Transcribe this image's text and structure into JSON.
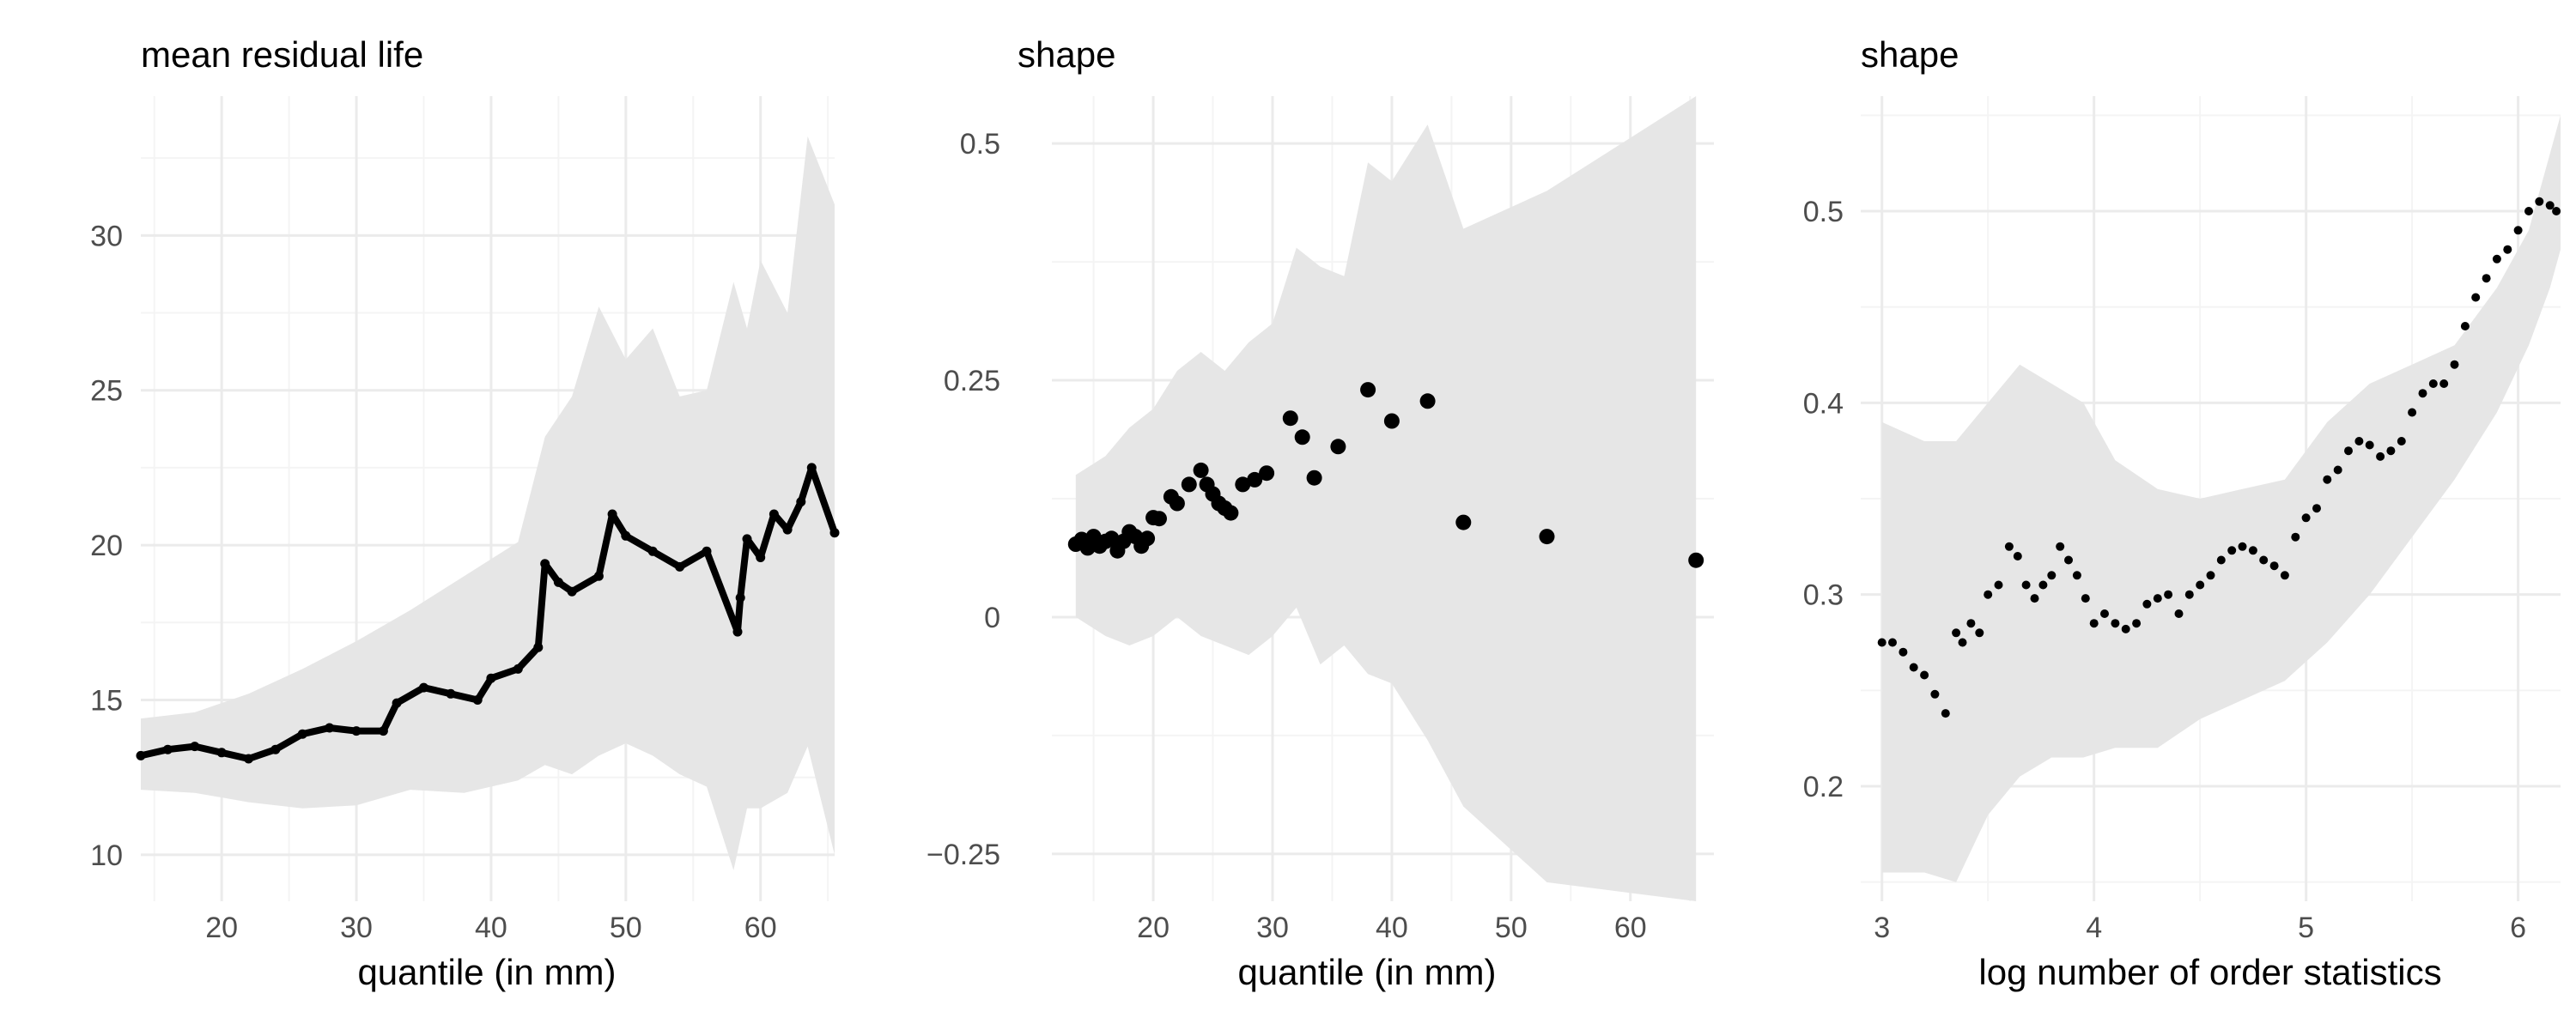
{
  "figure": {
    "panels": 3
  },
  "colors": {
    "background": "#ffffff",
    "grid_major": "#ebebeb",
    "grid_minor": "#f4f4f4",
    "ribbon": "#e6e6e6",
    "points": "#000000",
    "tick_text": "#4d4d4d",
    "title_text": "#000000"
  },
  "chart_data": [
    {
      "type": "line",
      "title": "mean residual life",
      "xlabel": "quantile (in mm)",
      "ylabel": "",
      "xlim": [
        14,
        65.5
      ],
      "ylim": [
        8.5,
        34.5
      ],
      "xticks": [
        20,
        30,
        40,
        50,
        60
      ],
      "yticks": [
        10,
        15,
        20,
        25,
        30
      ],
      "grid": true,
      "series": [
        {
          "kind": "line-points",
          "x": [
            14,
            16,
            18,
            20,
            22,
            24,
            26,
            28,
            30,
            32,
            33,
            35,
            37,
            39,
            40,
            42,
            43.5,
            44,
            45,
            46,
            48,
            49,
            50,
            52,
            54,
            56,
            58.3,
            58.5,
            59,
            60,
            61,
            62,
            63,
            63.8,
            65.5
          ],
          "y": [
            13.2,
            13.4,
            13.5,
            13.3,
            13.1,
            13.4,
            13.9,
            14.1,
            14.0,
            14.0,
            14.9,
            15.4,
            15.2,
            15.0,
            15.7,
            16.0,
            16.7,
            19.4,
            18.8,
            18.5,
            19.0,
            21.0,
            20.3,
            19.8,
            19.3,
            19.8,
            17.2,
            18.3,
            20.2,
            19.6,
            21.0,
            20.5,
            21.4,
            22.5,
            20.4
          ]
        }
      ],
      "band": {
        "x": [
          14,
          18,
          22,
          26,
          30,
          34,
          38,
          42,
          44,
          46,
          48,
          50,
          52,
          54,
          56,
          58,
          59,
          60,
          62,
          63.5,
          65.5
        ],
        "lower": [
          12.1,
          12.0,
          11.7,
          11.5,
          11.6,
          12.1,
          12.0,
          12.4,
          12.9,
          12.6,
          13.2,
          13.6,
          13.2,
          12.6,
          12.2,
          9.5,
          11.5,
          11.5,
          12.0,
          13.5,
          10.0
        ],
        "upper": [
          14.4,
          14.6,
          15.2,
          16.0,
          16.9,
          17.9,
          19.0,
          20.1,
          23.5,
          24.8,
          27.7,
          26.0,
          27.0,
          24.8,
          25.0,
          28.5,
          27.0,
          29.2,
          27.5,
          33.2,
          31.0
        ]
      }
    },
    {
      "type": "scatter",
      "title": "shape",
      "xlabel": "quantile (in mm)",
      "ylabel": "",
      "xlim": [
        11.5,
        67
      ],
      "ylim": [
        -0.3,
        0.55
      ],
      "xticks": [
        20,
        30,
        40,
        50,
        60
      ],
      "yticks": [
        -0.25,
        0,
        0.25,
        0.5
      ],
      "ytick_labels": [
        "−0.25",
        "0",
        "0.25",
        "0.5"
      ],
      "grid": true,
      "series": [
        {
          "kind": "points",
          "x": [
            13.5,
            14.0,
            14.5,
            15.0,
            15.5,
            16.0,
            16.5,
            17.0,
            17.5,
            18.0,
            18.5,
            19.0,
            19.5,
            20.0,
            20.5,
            21.5,
            22.0,
            23.0,
            24.0,
            24.5,
            25.0,
            25.5,
            26.0,
            26.5,
            27.5,
            28.5,
            29.5,
            31.5,
            32.5,
            33.5,
            35.5,
            38.0,
            40.0,
            43.0,
            46.0,
            53.0,
            65.5
          ],
          "y": [
            0.077,
            0.082,
            0.073,
            0.085,
            0.075,
            0.08,
            0.083,
            0.07,
            0.08,
            0.09,
            0.085,
            0.075,
            0.083,
            0.105,
            0.104,
            0.127,
            0.12,
            0.14,
            0.155,
            0.14,
            0.13,
            0.12,
            0.115,
            0.11,
            0.14,
            0.145,
            0.152,
            0.21,
            0.19,
            0.147,
            0.18,
            0.24,
            0.207,
            0.228,
            0.1,
            0.085,
            0.06
          ]
        }
      ],
      "band": {
        "x": [
          13.5,
          16,
          18,
          20,
          22,
          24,
          26,
          28,
          30,
          32,
          34,
          36,
          38,
          40,
          43,
          46,
          53,
          65.5
        ],
        "lower": [
          0.0,
          -0.02,
          -0.03,
          -0.02,
          0.0,
          -0.02,
          -0.03,
          -0.04,
          -0.02,
          0.01,
          -0.05,
          -0.03,
          -0.06,
          -0.07,
          -0.13,
          -0.2,
          -0.28,
          -0.3
        ],
        "upper": [
          0.15,
          0.17,
          0.2,
          0.22,
          0.26,
          0.28,
          0.26,
          0.29,
          0.31,
          0.39,
          0.37,
          0.36,
          0.48,
          0.46,
          0.52,
          0.41,
          0.45,
          0.55
        ]
      }
    },
    {
      "type": "scatter",
      "title": "shape",
      "xlabel": "log number of order statistics",
      "ylabel": "",
      "xlim": [
        2.9,
        6.2
      ],
      "ylim": [
        0.14,
        0.56
      ],
      "xticks": [
        3,
        4,
        5,
        6
      ],
      "yticks": [
        0.2,
        0.3,
        0.4,
        0.5
      ],
      "grid": true,
      "series": [
        {
          "kind": "points",
          "x": [
            3.0,
            3.05,
            3.1,
            3.15,
            3.2,
            3.25,
            3.3,
            3.35,
            3.38,
            3.42,
            3.46,
            3.5,
            3.55,
            3.6,
            3.64,
            3.68,
            3.72,
            3.76,
            3.8,
            3.84,
            3.88,
            3.92,
            3.96,
            4.0,
            4.05,
            4.1,
            4.15,
            4.2,
            4.25,
            4.3,
            4.35,
            4.4,
            4.45,
            4.5,
            4.55,
            4.6,
            4.65,
            4.7,
            4.75,
            4.8,
            4.85,
            4.9,
            4.95,
            5.0,
            5.05,
            5.1,
            5.15,
            5.2,
            5.25,
            5.3,
            5.35,
            5.4,
            5.45,
            5.5,
            5.55,
            5.6,
            5.65,
            5.7,
            5.75,
            5.8,
            5.85,
            5.9,
            5.95,
            6.0,
            6.05,
            6.1,
            6.15,
            6.18
          ],
          "y": [
            0.275,
            0.275,
            0.27,
            0.262,
            0.258,
            0.248,
            0.238,
            0.28,
            0.275,
            0.285,
            0.28,
            0.3,
            0.305,
            0.325,
            0.32,
            0.305,
            0.298,
            0.305,
            0.31,
            0.325,
            0.318,
            0.31,
            0.298,
            0.285,
            0.29,
            0.285,
            0.282,
            0.285,
            0.295,
            0.298,
            0.3,
            0.29,
            0.3,
            0.305,
            0.31,
            0.318,
            0.323,
            0.325,
            0.323,
            0.318,
            0.315,
            0.31,
            0.33,
            0.34,
            0.345,
            0.36,
            0.365,
            0.375,
            0.38,
            0.378,
            0.372,
            0.375,
            0.38,
            0.395,
            0.405,
            0.41,
            0.41,
            0.42,
            0.44,
            0.455,
            0.465,
            0.475,
            0.48,
            0.49,
            0.5,
            0.505,
            0.503,
            0.5
          ]
        }
      ],
      "band": {
        "x": [
          3.0,
          3.2,
          3.35,
          3.5,
          3.65,
          3.8,
          3.95,
          4.1,
          4.3,
          4.5,
          4.7,
          4.9,
          5.1,
          5.3,
          5.5,
          5.7,
          5.9,
          6.05,
          6.15,
          6.2
        ],
        "lower": [
          0.155,
          0.155,
          0.15,
          0.185,
          0.205,
          0.215,
          0.215,
          0.22,
          0.22,
          0.235,
          0.245,
          0.255,
          0.275,
          0.3,
          0.33,
          0.36,
          0.395,
          0.43,
          0.46,
          0.48
        ],
        "upper": [
          0.39,
          0.38,
          0.38,
          0.4,
          0.42,
          0.41,
          0.4,
          0.37,
          0.355,
          0.35,
          0.355,
          0.36,
          0.39,
          0.41,
          0.42,
          0.43,
          0.46,
          0.49,
          0.53,
          0.55
        ]
      }
    }
  ]
}
